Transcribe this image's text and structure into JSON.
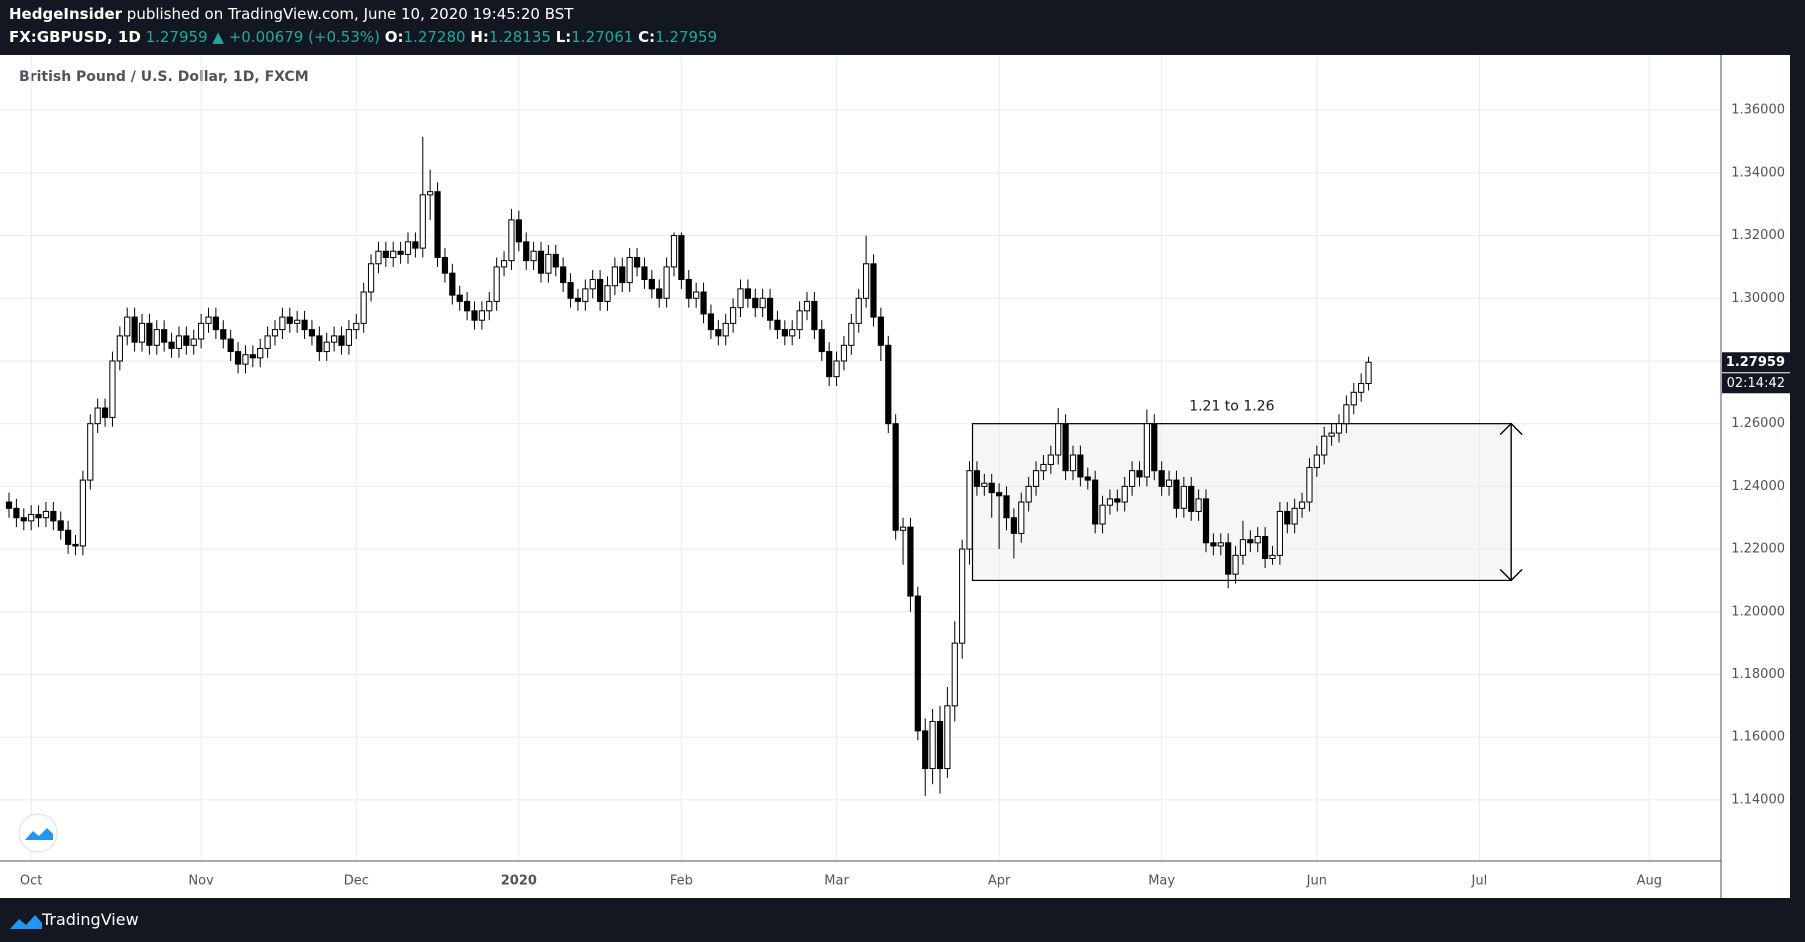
{
  "header": {
    "author": "HedgeInsider",
    "published": "published on TradingView.com, June 10, 2020 19:45:20 BST",
    "symbol": "FX:GBPUSD, 1D",
    "price": "1.27959",
    "change": "▲ +0.00679 (+0.53%)",
    "ohlc": [
      {
        "label": "O:",
        "value": "1.27280"
      },
      {
        "label": "H:",
        "value": "1.28135"
      },
      {
        "label": "L:",
        "value": "1.27061"
      },
      {
        "label": "C:",
        "value": "1.27959"
      }
    ]
  },
  "footer": {
    "brand": "TradingView"
  },
  "chart_data": {
    "type": "candlestick",
    "title": "British Pound / U.S. Dollar, 1D, FXCM",
    "up_color": "#ffffff",
    "down_color": "#000000",
    "grid": true,
    "ylim": [
      1.1205,
      1.3776
    ],
    "yticks": [
      {
        "value": 1.14,
        "label": "1.14000"
      },
      {
        "value": 1.16,
        "label": "1.16000"
      },
      {
        "value": 1.18,
        "label": "1.18000"
      },
      {
        "value": 1.2,
        "label": "1.20000"
      },
      {
        "value": 1.22,
        "label": "1.22000"
      },
      {
        "value": 1.24,
        "label": "1.24000"
      },
      {
        "value": 1.26,
        "label": "1.26000"
      },
      {
        "value": 1.28,
        "label": "1.28000"
      },
      {
        "value": 1.3,
        "label": "1.30000"
      },
      {
        "value": 1.32,
        "label": "1.32000"
      },
      {
        "value": 1.34,
        "label": "1.34000"
      },
      {
        "value": 1.36,
        "label": "1.36000"
      }
    ],
    "xlim": [
      0,
      231.7
    ],
    "xticks": [
      {
        "value": 3,
        "label": "Oct"
      },
      {
        "value": 26,
        "label": "Nov"
      },
      {
        "value": 47,
        "label": "Dec"
      },
      {
        "value": 69,
        "label": "2020"
      },
      {
        "value": 91,
        "label": "Feb"
      },
      {
        "value": 112,
        "label": "Mar"
      },
      {
        "value": 134,
        "label": "Apr"
      },
      {
        "value": 156,
        "label": "May"
      },
      {
        "value": 177,
        "label": "Jun"
      },
      {
        "value": 199,
        "label": "Jul"
      },
      {
        "value": 222,
        "label": "Aug"
      }
    ],
    "open": [
      1.235,
      1.233,
      1.23,
      1.229,
      1.231,
      1.23,
      1.232,
      1.229,
      1.226,
      1.2215,
      1.221,
      1.242,
      1.26,
      1.265,
      1.262,
      1.28,
      1.288,
      1.294,
      1.286,
      1.292,
      1.285,
      1.29,
      1.286,
      1.284,
      1.288,
      1.285,
      1.287,
      1.292,
      1.294,
      1.29,
      1.287,
      1.283,
      1.279,
      1.282,
      1.281,
      1.284,
      1.288,
      1.29,
      1.294,
      1.292,
      1.293,
      1.29,
      1.288,
      1.283,
      1.286,
      1.288,
      1.285,
      1.29,
      1.292,
      1.302,
      1.311,
      1.315,
      1.313,
      1.315,
      1.314,
      1.318,
      1.316,
      1.333,
      1.334,
      1.313,
      1.308,
      1.301,
      1.299,
      1.296,
      1.293,
      1.296,
      1.299,
      1.31,
      1.312,
      1.325,
      1.318,
      1.312,
      1.315,
      1.308,
      1.314,
      1.31,
      1.305,
      1.3,
      1.299,
      1.303,
      1.306,
      1.299,
      1.304,
      1.31,
      1.305,
      1.313,
      1.31,
      1.306,
      1.303,
      1.3,
      1.31,
      1.32,
      1.306,
      1.3,
      1.302,
      1.295,
      1.29,
      1.288,
      1.292,
      1.297,
      1.303,
      1.3,
      1.297,
      1.3,
      1.293,
      1.29,
      1.288,
      1.29,
      1.296,
      1.299,
      1.29,
      1.283,
      1.275,
      1.28,
      1.285,
      1.292,
      1.3,
      1.311,
      1.294,
      1.285,
      1.26,
      1.226,
      1.227,
      1.205,
      1.162,
      1.15,
      1.165,
      1.15,
      1.17,
      1.19,
      1.22,
      1.245,
      1.24,
      1.241,
      1.238,
      1.237,
      1.23,
      1.225,
      1.235,
      1.24,
      1.245,
      1.247,
      1.25,
      1.26,
      1.245,
      1.25,
      1.243,
      1.242,
      1.228,
      1.234,
      1.236,
      1.235,
      1.24,
      1.245,
      1.243,
      1.26,
      1.245,
      1.24,
      1.242,
      1.233,
      1.24,
      1.232,
      1.236,
      1.222,
      1.221,
      1.222,
      1.212,
      1.218,
      1.223,
      1.222,
      1.224,
      1.217,
      1.218,
      1.232,
      1.228,
      1.233,
      1.235,
      1.246,
      1.25,
      1.256,
      1.257,
      1.26,
      1.266,
      1.27,
      1.2728
    ],
    "high": [
      1.238,
      1.236,
      1.233,
      1.234,
      1.234,
      1.235,
      1.235,
      1.232,
      1.229,
      1.2245,
      1.245,
      1.263,
      1.268,
      1.268,
      1.283,
      1.291,
      1.297,
      1.297,
      1.295,
      1.295,
      1.293,
      1.293,
      1.289,
      1.291,
      1.291,
      1.29,
      1.295,
      1.297,
      1.297,
      1.293,
      1.29,
      1.286,
      1.285,
      1.285,
      1.287,
      1.291,
      1.293,
      1.297,
      1.297,
      1.296,
      1.296,
      1.293,
      1.291,
      1.289,
      1.291,
      1.291,
      1.293,
      1.295,
      1.305,
      1.314,
      1.318,
      1.318,
      1.318,
      1.318,
      1.321,
      1.321,
      1.3515,
      1.341,
      1.337,
      1.316,
      1.311,
      1.304,
      1.302,
      1.299,
      1.299,
      1.302,
      1.313,
      1.315,
      1.3285,
      1.328,
      1.321,
      1.318,
      1.318,
      1.317,
      1.317,
      1.313,
      1.308,
      1.303,
      1.306,
      1.309,
      1.309,
      1.307,
      1.313,
      1.313,
      1.316,
      1.316,
      1.313,
      1.309,
      1.306,
      1.313,
      1.321,
      1.321,
      1.309,
      1.305,
      1.305,
      1.298,
      1.293,
      1.295,
      1.3,
      1.306,
      1.306,
      1.303,
      1.303,
      1.303,
      1.296,
      1.293,
      1.293,
      1.299,
      1.302,
      1.302,
      1.293,
      1.286,
      1.283,
      1.288,
      1.295,
      1.303,
      1.32,
      1.314,
      1.297,
      1.288,
      1.263,
      1.23,
      1.23,
      1.208,
      1.166,
      1.169,
      1.17,
      1.176,
      1.197,
      1.223,
      1.248,
      1.248,
      1.244,
      1.244,
      1.241,
      1.24,
      1.233,
      1.238,
      1.243,
      1.248,
      1.25,
      1.253,
      1.265,
      1.263,
      1.253,
      1.253,
      1.246,
      1.245,
      1.237,
      1.239,
      1.239,
      1.243,
      1.248,
      1.248,
      1.2645,
      1.263,
      1.248,
      1.245,
      1.245,
      1.243,
      1.243,
      1.239,
      1.239,
      1.225,
      1.225,
      1.225,
      1.221,
      1.229,
      1.226,
      1.227,
      1.227,
      1.221,
      1.235,
      1.235,
      1.236,
      1.238,
      1.249,
      1.253,
      1.259,
      1.26,
      1.263,
      1.269,
      1.273,
      1.276,
      1.28135
    ],
    "low": [
      1.23,
      1.227,
      1.226,
      1.226,
      1.227,
      1.227,
      1.226,
      1.223,
      1.2185,
      1.218,
      1.218,
      1.239,
      1.257,
      1.259,
      1.259,
      1.277,
      1.285,
      1.283,
      1.283,
      1.282,
      1.282,
      1.283,
      1.281,
      1.281,
      1.282,
      1.282,
      1.284,
      1.289,
      1.287,
      1.284,
      1.28,
      1.276,
      1.276,
      1.278,
      1.278,
      1.281,
      1.285,
      1.287,
      1.289,
      1.289,
      1.287,
      1.285,
      1.28,
      1.28,
      1.283,
      1.282,
      1.282,
      1.287,
      1.289,
      1.299,
      1.308,
      1.31,
      1.31,
      1.311,
      1.311,
      1.313,
      1.313,
      1.325,
      1.31,
      1.305,
      1.298,
      1.296,
      1.293,
      1.29,
      1.29,
      1.293,
      1.296,
      1.307,
      1.309,
      1.315,
      1.309,
      1.309,
      1.305,
      1.305,
      1.307,
      1.302,
      1.297,
      1.296,
      1.296,
      1.3,
      1.296,
      1.296,
      1.301,
      1.302,
      1.302,
      1.307,
      1.303,
      1.3,
      1.297,
      1.297,
      1.307,
      1.303,
      1.297,
      1.297,
      1.292,
      1.287,
      1.285,
      1.285,
      1.289,
      1.294,
      1.297,
      1.294,
      1.294,
      1.29,
      1.287,
      1.285,
      1.285,
      1.287,
      1.293,
      1.287,
      1.28,
      1.272,
      1.272,
      1.277,
      1.282,
      1.289,
      1.297,
      1.291,
      1.28,
      1.257,
      1.223,
      1.215,
      1.2,
      1.159,
      1.1412,
      1.145,
      1.142,
      1.147,
      1.165,
      1.185,
      1.215,
      1.237,
      1.237,
      1.23,
      1.22,
      1.226,
      1.217,
      1.222,
      1.232,
      1.237,
      1.242,
      1.244,
      1.247,
      1.242,
      1.242,
      1.24,
      1.239,
      1.225,
      1.225,
      1.231,
      1.232,
      1.232,
      1.237,
      1.24,
      1.24,
      1.242,
      1.237,
      1.237,
      1.23,
      1.23,
      1.229,
      1.229,
      1.219,
      1.218,
      1.218,
      1.2075,
      1.209,
      1.215,
      1.219,
      1.219,
      1.214,
      1.215,
      1.215,
      1.225,
      1.225,
      1.23,
      1.232,
      1.243,
      1.247,
      1.253,
      1.254,
      1.257,
      1.263,
      1.267,
      1.27061
    ],
    "close": [
      1.233,
      1.23,
      1.229,
      1.231,
      1.23,
      1.232,
      1.229,
      1.226,
      1.2215,
      1.221,
      1.242,
      1.26,
      1.265,
      1.262,
      1.28,
      1.288,
      1.294,
      1.286,
      1.292,
      1.285,
      1.29,
      1.286,
      1.284,
      1.288,
      1.285,
      1.287,
      1.292,
      1.294,
      1.29,
      1.287,
      1.283,
      1.279,
      1.282,
      1.281,
      1.284,
      1.288,
      1.29,
      1.294,
      1.292,
      1.293,
      1.29,
      1.288,
      1.283,
      1.286,
      1.288,
      1.285,
      1.29,
      1.292,
      1.302,
      1.311,
      1.315,
      1.313,
      1.315,
      1.314,
      1.318,
      1.316,
      1.333,
      1.334,
      1.313,
      1.308,
      1.301,
      1.299,
      1.296,
      1.293,
      1.296,
      1.299,
      1.31,
      1.312,
      1.325,
      1.318,
      1.312,
      1.315,
      1.308,
      1.314,
      1.31,
      1.305,
      1.3,
      1.299,
      1.303,
      1.306,
      1.299,
      1.304,
      1.31,
      1.305,
      1.313,
      1.31,
      1.306,
      1.303,
      1.3,
      1.31,
      1.32,
      1.306,
      1.3,
      1.302,
      1.295,
      1.29,
      1.288,
      1.292,
      1.297,
      1.303,
      1.3,
      1.297,
      1.3,
      1.293,
      1.29,
      1.288,
      1.29,
      1.296,
      1.299,
      1.29,
      1.283,
      1.275,
      1.28,
      1.285,
      1.292,
      1.3,
      1.311,
      1.294,
      1.285,
      1.26,
      1.226,
      1.227,
      1.205,
      1.162,
      1.15,
      1.165,
      1.15,
      1.17,
      1.19,
      1.22,
      1.245,
      1.24,
      1.241,
      1.238,
      1.237,
      1.23,
      1.225,
      1.235,
      1.24,
      1.245,
      1.247,
      1.25,
      1.26,
      1.245,
      1.25,
      1.243,
      1.242,
      1.228,
      1.234,
      1.236,
      1.235,
      1.24,
      1.245,
      1.243,
      1.26,
      1.245,
      1.24,
      1.242,
      1.233,
      1.24,
      1.232,
      1.236,
      1.222,
      1.221,
      1.222,
      1.212,
      1.218,
      1.223,
      1.222,
      1.224,
      1.217,
      1.218,
      1.232,
      1.228,
      1.233,
      1.235,
      1.246,
      1.25,
      1.256,
      1.257,
      1.26,
      1.266,
      1.27,
      1.2728,
      1.27959
    ],
    "price_tag": "1.27959",
    "countdown": "02:14:42",
    "range_box": {
      "label": "1.21 to 1.26",
      "low": 1.21,
      "high": 1.26
    }
  }
}
